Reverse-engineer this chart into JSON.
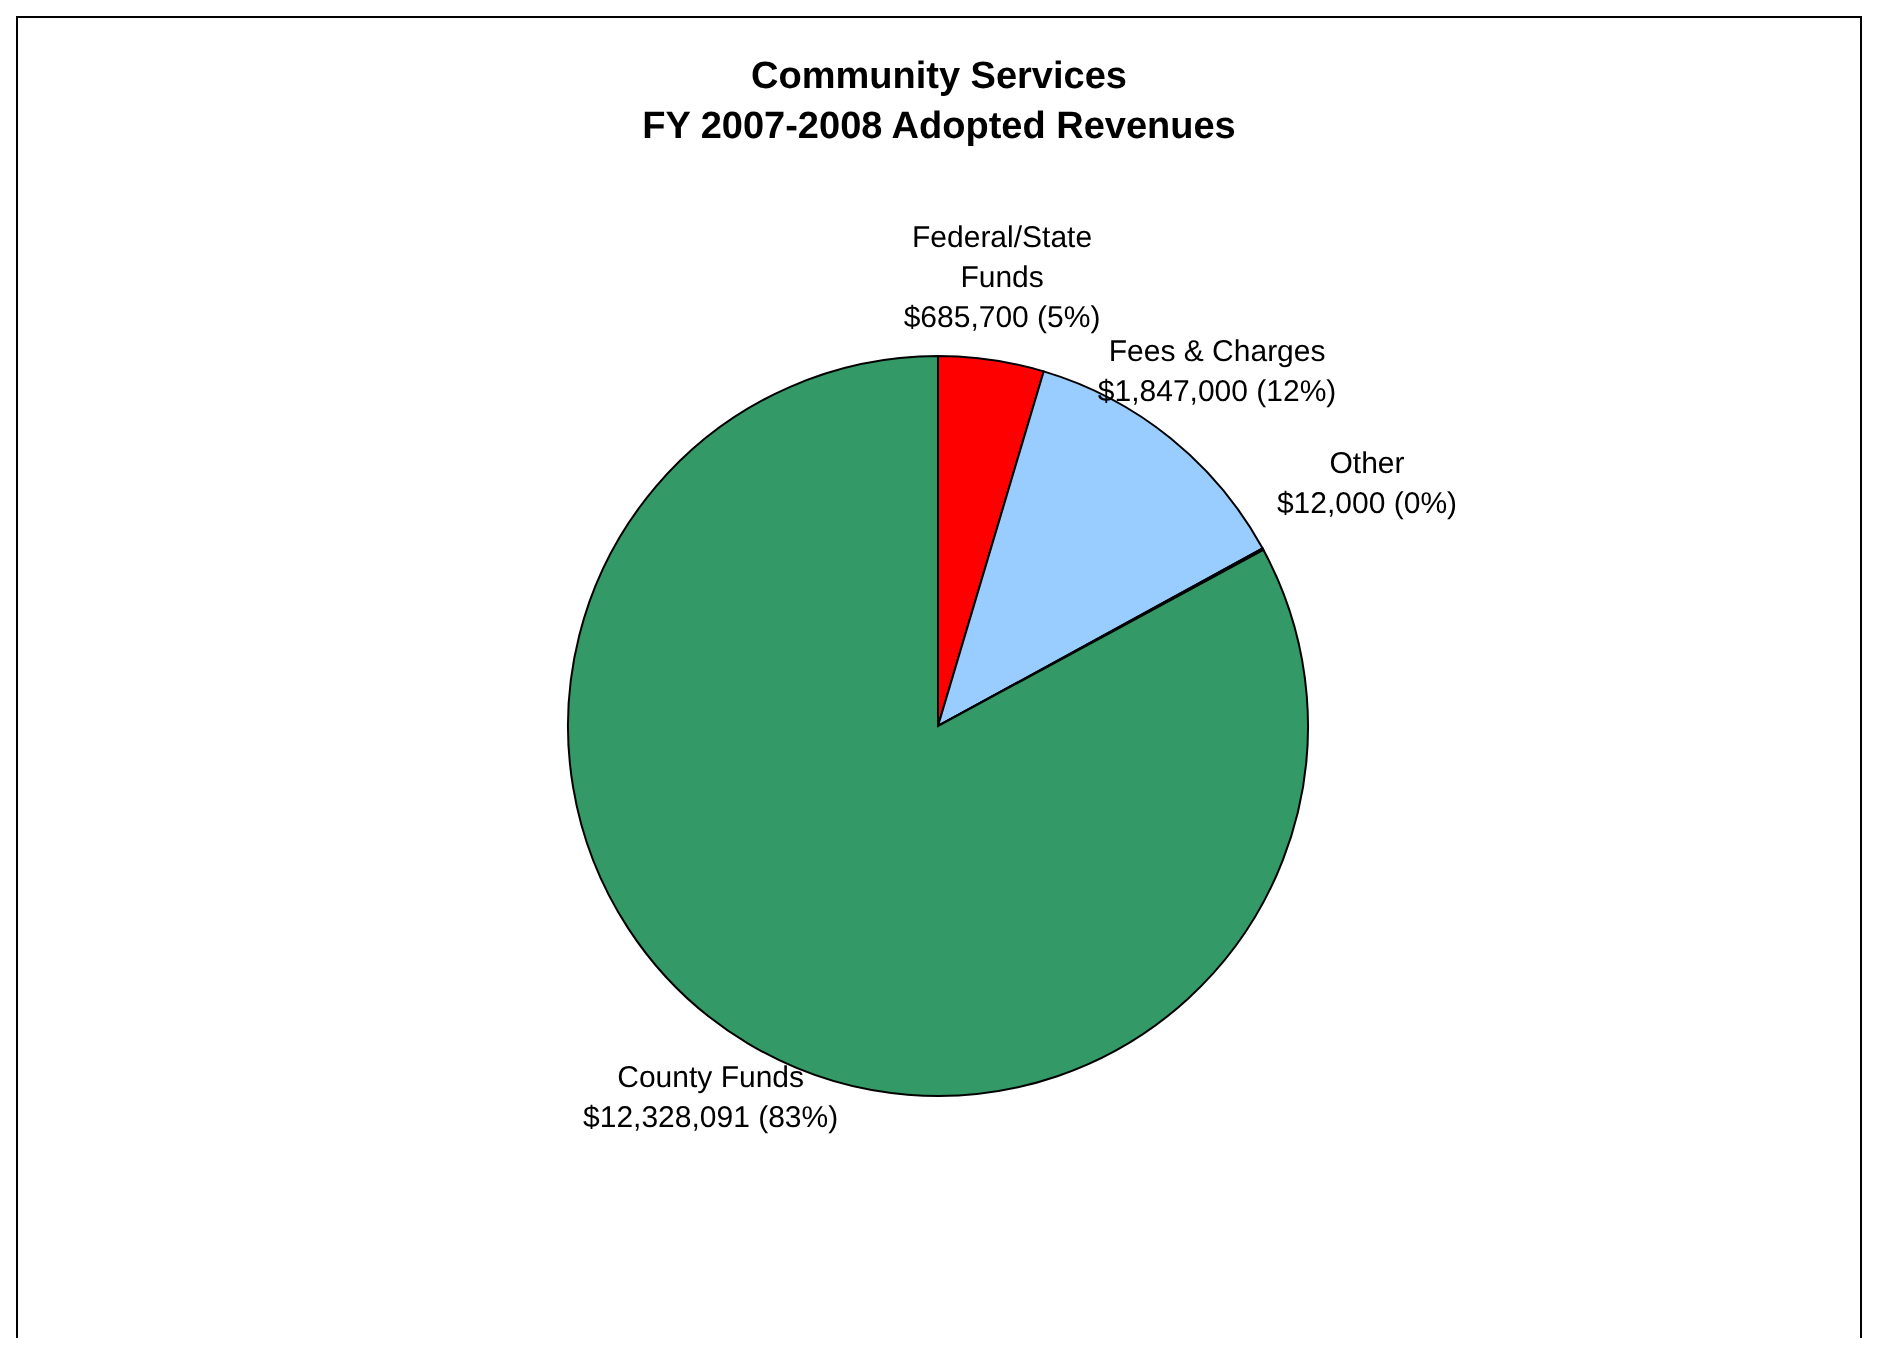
{
  "chart_data": {
    "type": "pie",
    "title": "Community Services\nFY 2007-2008 Adopted Revenues",
    "categories": [
      "Federal/State Funds",
      "Fees & Charges",
      "Other",
      "County Funds"
    ],
    "values": [
      685700,
      1847000,
      12000,
      12328091
    ],
    "colors": [
      "#ff0000",
      "#99ccff",
      "#ffffcc",
      "#339966"
    ],
    "value_labels": [
      "$685,700 (5%)",
      "$1,847,000 (12%)",
      "$12,000 (0%)",
      "$12,328,091 (83%)"
    ]
  }
}
